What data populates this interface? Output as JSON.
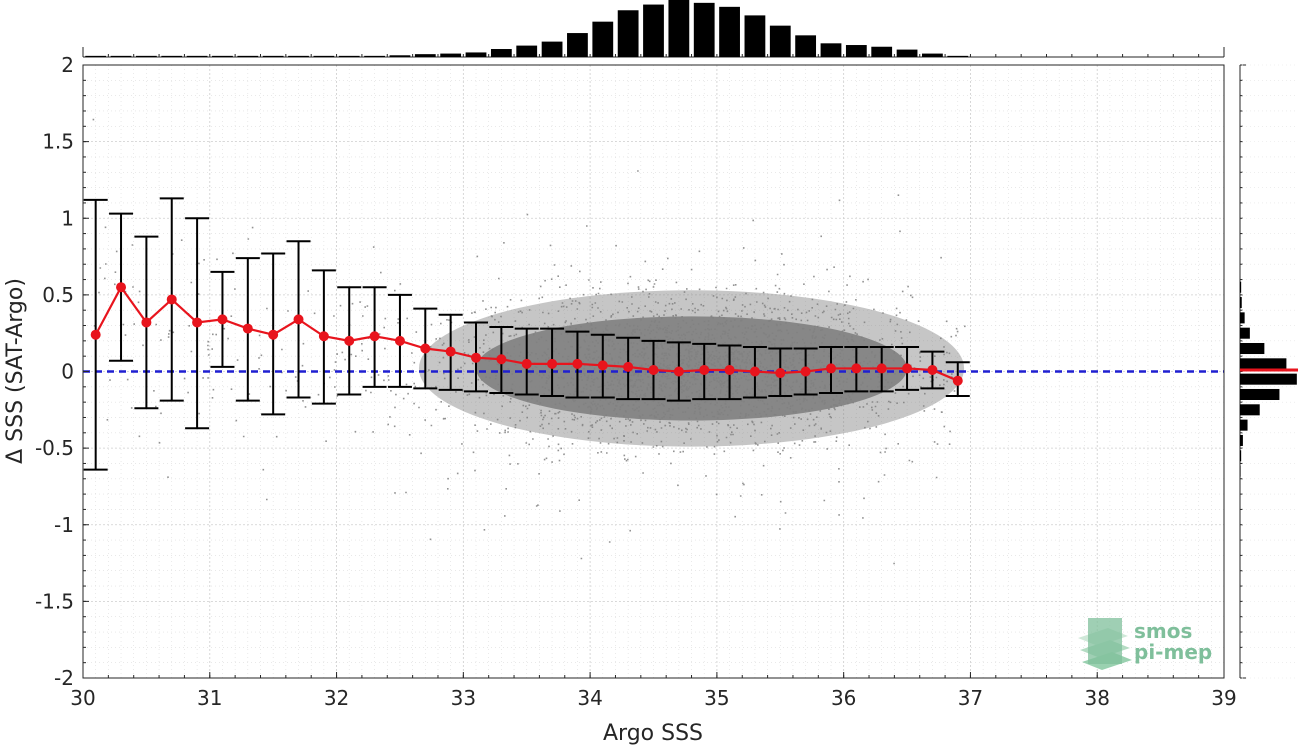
{
  "chart_data": {
    "type": "scatter",
    "title": "",
    "xlabel": "Argo SSS",
    "ylabel": "Δ SSS (SAT-Argo)",
    "xlim": [
      30,
      39
    ],
    "ylim": [
      -2,
      2
    ],
    "x_ticks": [
      "30",
      "31",
      "32",
      "33",
      "34",
      "35",
      "36",
      "37",
      "38",
      "39"
    ],
    "y_ticks": [
      "2",
      "1.5",
      "1",
      "0.5",
      "0",
      "-0.5",
      "-1",
      "-1.5",
      "-2"
    ],
    "grid": true,
    "reference_line_y": 0,
    "scatter_cloud": {
      "color": "#808080",
      "description_x_range": [
        30,
        37
      ],
      "center_x": 34.8
    },
    "binned_stats": {
      "x": [
        30.1,
        30.3,
        30.5,
        30.7,
        30.9,
        31.1,
        31.3,
        31.5,
        31.7,
        31.9,
        32.1,
        32.3,
        32.5,
        32.7,
        32.9,
        33.1,
        33.3,
        33.5,
        33.7,
        33.9,
        34.1,
        34.3,
        34.5,
        34.7,
        34.9,
        35.1,
        35.3,
        35.5,
        35.7,
        35.9,
        36.1,
        36.3,
        36.5,
        36.7,
        36.9
      ],
      "mean": [
        0.24,
        0.55,
        0.32,
        0.47,
        0.32,
        0.34,
        0.28,
        0.24,
        0.34,
        0.23,
        0.2,
        0.23,
        0.2,
        0.15,
        0.13,
        0.09,
        0.08,
        0.05,
        0.05,
        0.05,
        0.04,
        0.03,
        0.01,
        0.0,
        0.01,
        0.01,
        0.0,
        -0.01,
        0.0,
        0.02,
        0.02,
        0.02,
        0.02,
        0.01,
        -0.06
      ],
      "upper": [
        1.12,
        1.03,
        0.88,
        1.13,
        1.0,
        0.65,
        0.74,
        0.77,
        0.85,
        0.66,
        0.55,
        0.55,
        0.5,
        0.41,
        0.37,
        0.32,
        0.29,
        0.28,
        0.28,
        0.26,
        0.24,
        0.22,
        0.2,
        0.19,
        0.18,
        0.17,
        0.16,
        0.15,
        0.15,
        0.16,
        0.16,
        0.16,
        0.16,
        0.13,
        0.06
      ],
      "lower": [
        -0.64,
        0.07,
        -0.24,
        -0.19,
        -0.37,
        0.03,
        -0.19,
        -0.28,
        -0.17,
        -0.21,
        -0.15,
        -0.1,
        -0.1,
        -0.11,
        -0.12,
        -0.13,
        -0.14,
        -0.15,
        -0.16,
        -0.17,
        -0.17,
        -0.18,
        -0.18,
        -0.19,
        -0.18,
        -0.18,
        -0.17,
        -0.16,
        -0.15,
        -0.14,
        -0.13,
        -0.13,
        -0.12,
        -0.11,
        -0.16
      ],
      "line_color": "#e8141d",
      "errorbar_color": "#000000"
    },
    "top_histogram": {
      "bins": [
        30.1,
        30.3,
        30.5,
        30.7,
        30.9,
        31.1,
        31.3,
        31.5,
        31.7,
        31.9,
        32.1,
        32.3,
        32.5,
        32.7,
        32.9,
        33.1,
        33.3,
        33.5,
        33.7,
        33.9,
        34.1,
        34.3,
        34.5,
        34.7,
        34.9,
        35.1,
        35.3,
        35.5,
        35.7,
        35.9,
        36.1,
        36.3,
        36.5,
        36.7,
        36.9
      ],
      "relative_counts": [
        0.02,
        0.02,
        0.02,
        0.02,
        0.02,
        0.02,
        0.02,
        0.02,
        0.02,
        0.02,
        0.02,
        0.02,
        0.03,
        0.05,
        0.06,
        0.08,
        0.14,
        0.2,
        0.27,
        0.42,
        0.62,
        0.82,
        0.92,
        1.0,
        0.95,
        0.88,
        0.73,
        0.55,
        0.38,
        0.24,
        0.21,
        0.18,
        0.13,
        0.06,
        0.02
      ]
    },
    "right_histogram": {
      "bins": [
        0.55,
        0.45,
        0.35,
        0.25,
        0.15,
        0.05,
        -0.05,
        -0.15,
        -0.25,
        -0.35,
        -0.45,
        -0.55,
        -0.65
      ],
      "relative_counts": [
        0.02,
        0.03,
        0.08,
        0.17,
        0.42,
        0.8,
        0.98,
        0.68,
        0.34,
        0.13,
        0.05,
        0.02,
        0.01
      ],
      "mean_line_color": "#e8141d"
    },
    "legend": "none"
  },
  "logo": {
    "line1": "smos",
    "line2": "pi-mep",
    "color": "#7fbf9b"
  }
}
